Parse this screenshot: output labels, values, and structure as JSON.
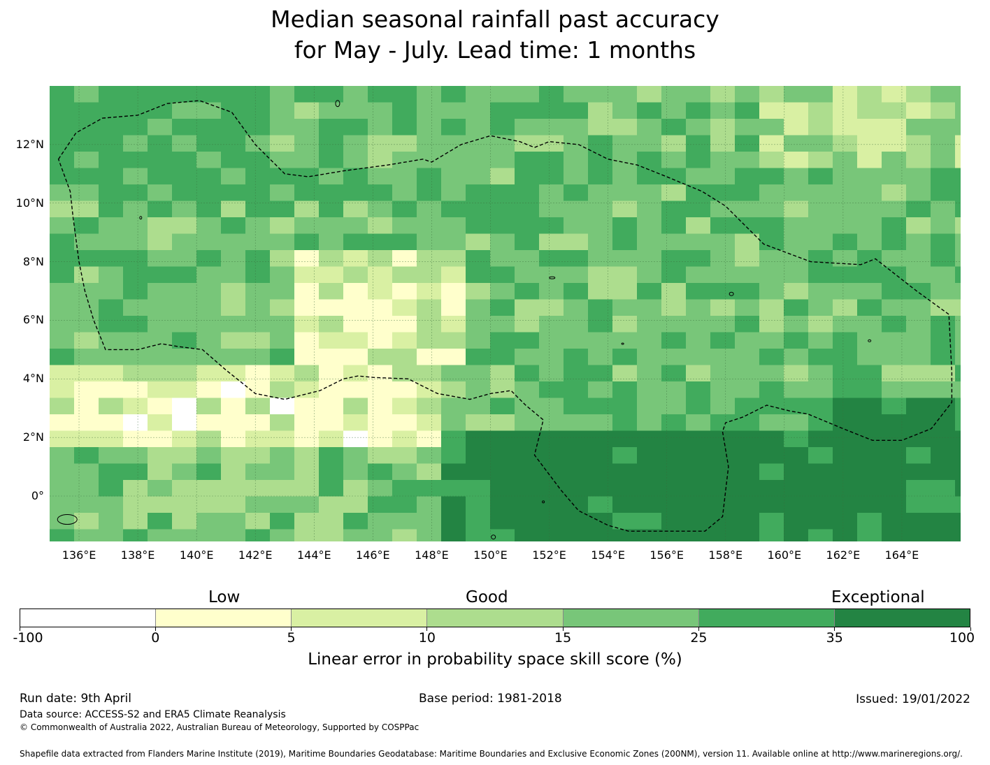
{
  "title": {
    "line1": "Median seasonal rainfall past accuracy",
    "line2": "for May - July. Lead time: 1 months"
  },
  "map": {
    "lon_range": [
      135,
      166
    ],
    "lat_range": [
      -1.55,
      14
    ],
    "lat_ticks": [
      "12°N",
      "10°N",
      "8°N",
      "6°N",
      "4°N",
      "2°N",
      "0°"
    ],
    "lon_ticks": [
      "136°E",
      "138°E",
      "140°E",
      "142°E",
      "144°E",
      "146°E",
      "148°E",
      "150°E",
      "152°E",
      "154°E",
      "156°E",
      "158°E",
      "160°E",
      "162°E",
      "164°E"
    ],
    "gridlines": true,
    "boundary_style": "dashed",
    "category_colors": [
      "#ffffff",
      "#ffffcc",
      "#d9f0a3",
      "#addd8e",
      "#78c679",
      "#41ab5d",
      "#238443"
    ]
  },
  "legend": {
    "low": "Low",
    "good": "Good",
    "exceptional": "Exceptional",
    "ticks": [
      "-100",
      "0",
      "5",
      "10",
      "15",
      "25",
      "35",
      "100"
    ],
    "colors": [
      "#ffffff",
      "#ffffcc",
      "#d9f0a3",
      "#addd8e",
      "#78c679",
      "#41ab5d",
      "#238443"
    ],
    "caption": "Linear error in probability space skill score (%)"
  },
  "footer": {
    "run_date": "Run date: 9th April",
    "base_period": "Base period: 1981-2018",
    "issued": "Issued: 19/01/2022",
    "data_source": "Data source: ACCESS-S2 and ERA5 Climate Reanalysis",
    "copyright": "© Commonwealth of Australia 2022, Australian Bureau of Meteorology, Supported by COSPPac",
    "shapefile": "Shapefile data extracted from Flanders Marine Institute (2019), Maritime Boundaries Geodatabase: Maritime Boundaries and Exclusive Economic Zones (200NM), version 11. Available online at http://www.marineregions.org/."
  }
}
